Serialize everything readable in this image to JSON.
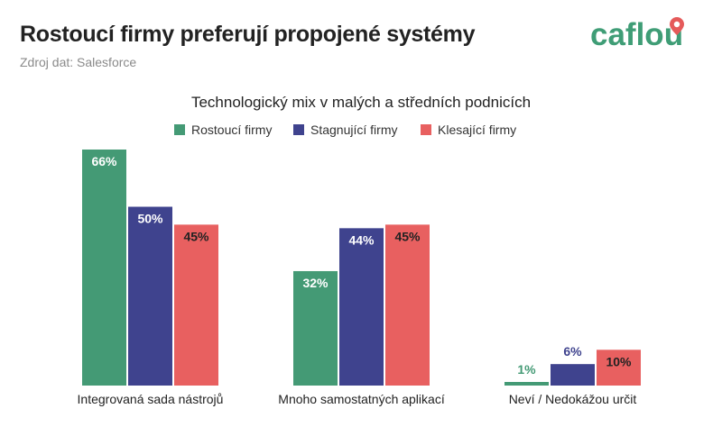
{
  "header": {
    "title": "Rostoucí firmy preferují propojené systémy",
    "source": "Zdroj dat: Salesforce",
    "logo_text": "caflou"
  },
  "colors": {
    "growing": "#449a75",
    "stagnating": "#3f438e",
    "declining": "#e86060",
    "brand_green": "#3f9d76",
    "brand_red": "#e55a5a"
  },
  "chart_data": {
    "type": "bar",
    "title": "Technologický mix v malých a středních podnicích",
    "categories": [
      "Integrovaná sada nástrojů",
      "Mnoho samostatných aplikací",
      "Neví / Nedokážou určit"
    ],
    "series": [
      {
        "name": "Rostoucí firmy",
        "values": [
          66,
          32,
          1
        ],
        "labels": [
          "66%",
          "32%",
          "1%"
        ],
        "color": "#449a75"
      },
      {
        "name": "Stagnující firmy",
        "values": [
          50,
          44,
          6
        ],
        "labels": [
          "50%",
          "44%",
          "6%"
        ],
        "color": "#3f438e"
      },
      {
        "name": "Klesající firmy",
        "values": [
          45,
          45,
          10
        ],
        "labels": [
          "45%",
          "45%",
          "10%"
        ],
        "color": "#e86060"
      }
    ],
    "ylim": [
      0,
      66
    ],
    "xlabel": "",
    "ylabel": "",
    "grid": false,
    "legend": "top-center"
  }
}
